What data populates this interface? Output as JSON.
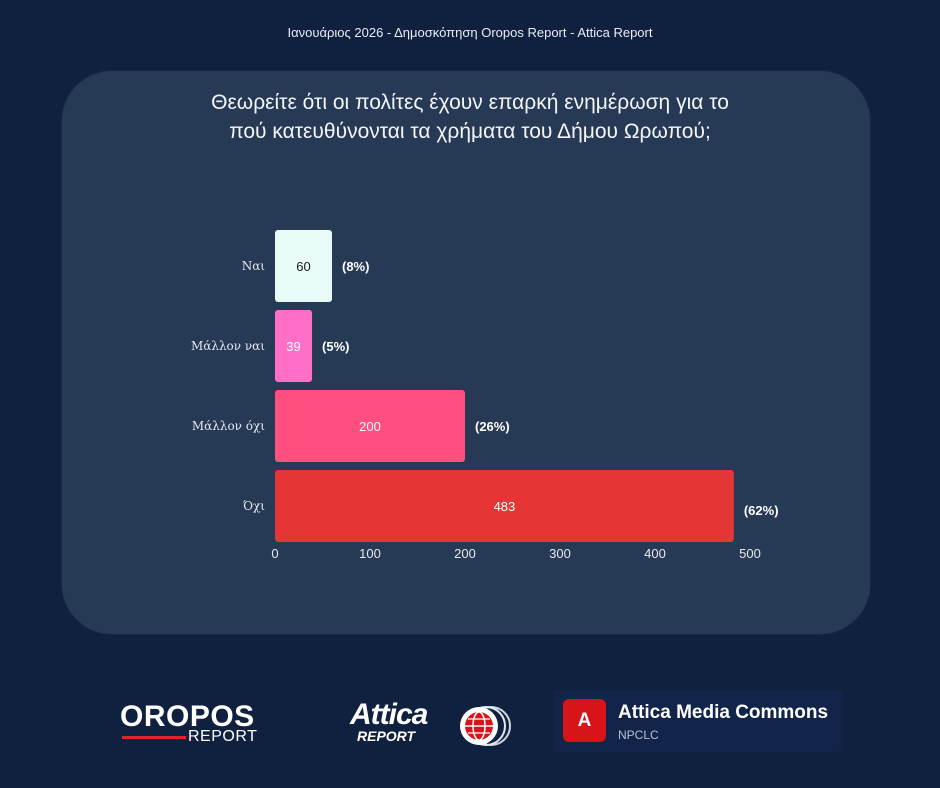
{
  "header": {
    "subtitle": "Ιανουάριος 2026 - Δημοσκόπηση Oropos Report - Attica Report"
  },
  "question": {
    "line1": "Θεωρείτε ότι οι πολίτες έχουν επαρκή ενημέρωση για το",
    "line2": "πού κατευθύνονται τα χρήματα του Δήμου Ωρωπού;"
  },
  "chart_data": {
    "type": "bar",
    "orientation": "horizontal",
    "title": "Θεωρείτε ότι οι πολίτες έχουν επαρκή ενημέρωση για το πού κατευθύνονται τα χρήματα του Δήμου Ωρωπού;",
    "categories": [
      "Ναι",
      "Μάλλον ναι",
      "Μάλλον όχι",
      "Όχι"
    ],
    "values": [
      60,
      39,
      200,
      483
    ],
    "percent_labels": [
      "(8%)",
      "(5%)",
      "(26%)",
      "(62%)"
    ],
    "bar_colors": [
      "#e9fbf6",
      "#ff6ec7",
      "#ff4f7f",
      "#e53535"
    ],
    "value_label_colors": [
      "#1a1a1a",
      "#ffffff",
      "#ffffff",
      "#ffffff"
    ],
    "xlim": [
      0,
      500
    ],
    "xticks": [
      0,
      100,
      200,
      300,
      400,
      500
    ],
    "xlabel": "",
    "ylabel": "",
    "grid": false
  },
  "footer": {
    "oropos": {
      "main": "OROPOS",
      "sub": "REPORT"
    },
    "attica": {
      "main": "Attica",
      "sub": "REPORT"
    },
    "amc": {
      "badge": "A",
      "name": "Attica Media Commons",
      "sub": "NPCLC"
    }
  }
}
